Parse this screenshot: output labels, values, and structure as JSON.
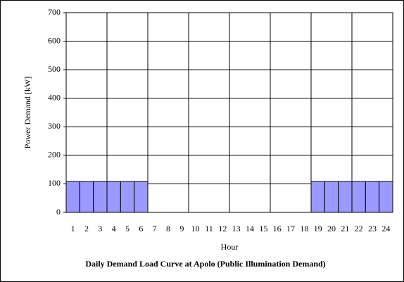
{
  "chart_data": {
    "type": "bar",
    "title": "Daily Demand Load Curve at Apolo  (Public Illumination Demand)",
    "x_label": "Hour",
    "y_label": "Power Demand [kW]",
    "categories": [
      "1",
      "2",
      "3",
      "4",
      "5",
      "6",
      "7",
      "8",
      "9",
      "10",
      "11",
      "12",
      "13",
      "14",
      "15",
      "16",
      "17",
      "18",
      "19",
      "20",
      "21",
      "22",
      "23",
      "24"
    ],
    "values": [
      108,
      108,
      108,
      108,
      108,
      108,
      0,
      0,
      0,
      0,
      0,
      0,
      0,
      0,
      0,
      0,
      0,
      0,
      108,
      108,
      108,
      108,
      108,
      108
    ],
    "color": "#9999ff",
    "ylim": [
      0,
      700
    ],
    "yticks": [
      0,
      100,
      200,
      300,
      400,
      500,
      600,
      700
    ],
    "grid": true
  }
}
